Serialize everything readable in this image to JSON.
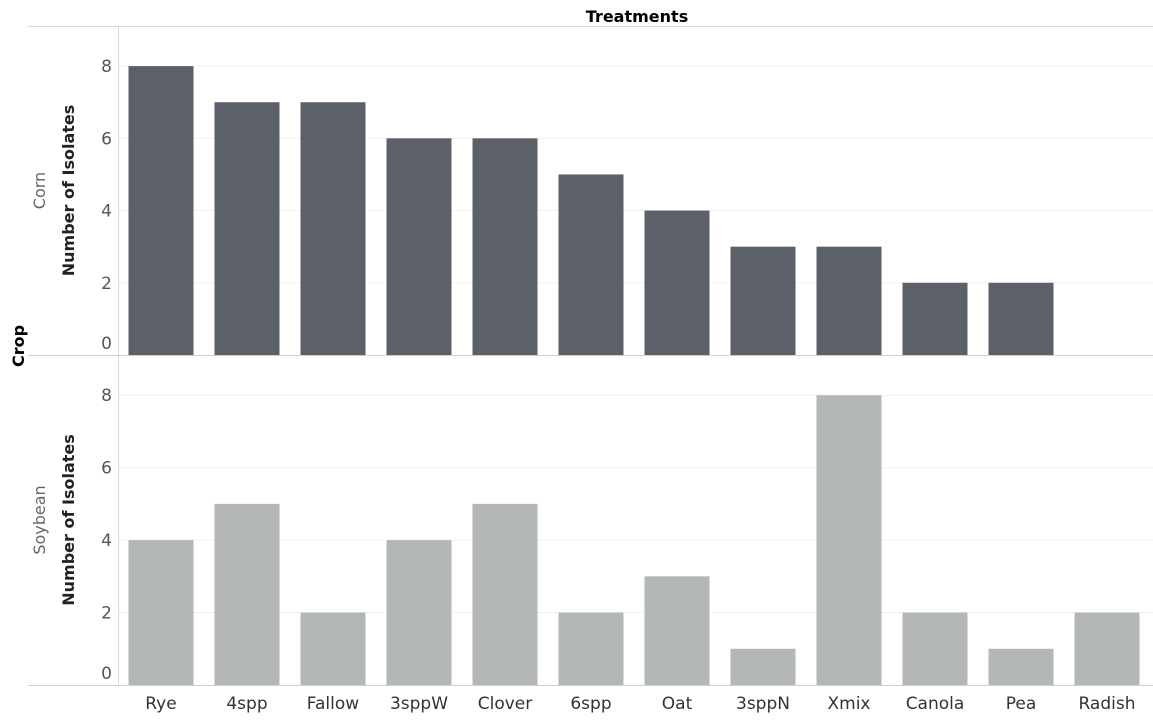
{
  "chart_data": {
    "type": "bar",
    "title": "Treatments",
    "row_header": "Crop",
    "xlabel": "",
    "ylabel": "Number of Isolates",
    "ylim": [
      0,
      9
    ],
    "yticks": [
      0,
      2,
      4,
      6,
      8
    ],
    "grid": true,
    "categories": [
      "Rye",
      "4spp",
      "Fallow",
      "3sppW",
      "Clover",
      "6spp",
      "Oat",
      "3sppN",
      "Xmix",
      "Canola",
      "Pea",
      "Radish"
    ],
    "series": [
      {
        "name": "Corn",
        "color": "#5b6069",
        "values": [
          8,
          7,
          7,
          6,
          6,
          5,
          4,
          3,
          3,
          2,
          2,
          0
        ]
      },
      {
        "name": "Soybean",
        "color": "#b4b7b7",
        "values": [
          4,
          5,
          2,
          4,
          5,
          2,
          3,
          1,
          8,
          2,
          1,
          2
        ]
      }
    ]
  }
}
